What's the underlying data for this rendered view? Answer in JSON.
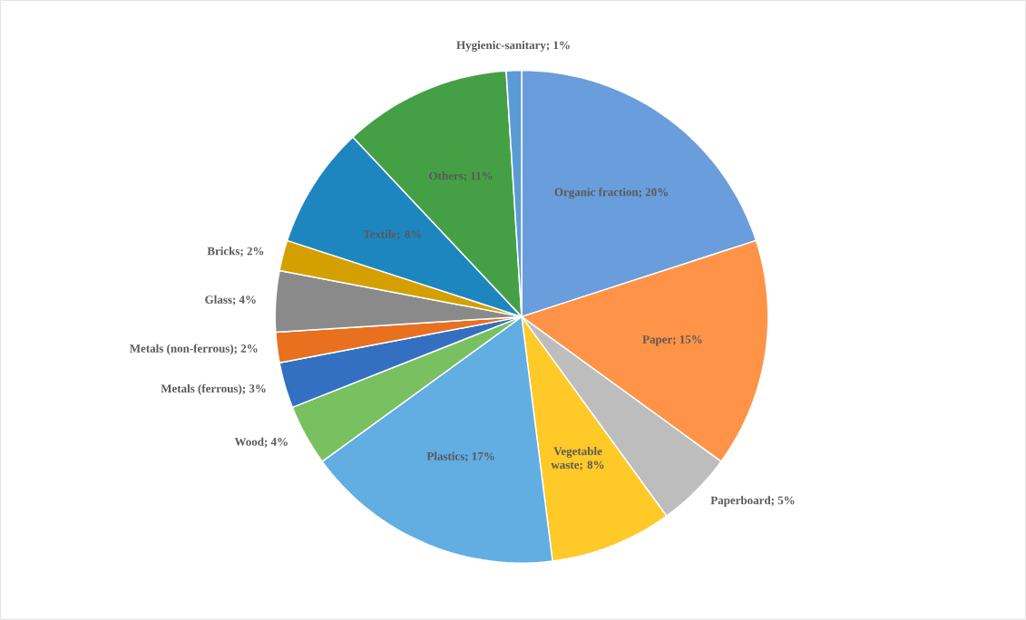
{
  "chart_data": {
    "type": "pie",
    "categories": [
      "Organic fraction; 20%",
      "Paper; 15%",
      "Paperboard; 5%",
      "Vegetable waste; 8%",
      "Plastics; 17%",
      "Wood; 4%",
      "Metals (ferrous); 3%",
      "Metals (non-ferrous); 2%",
      "Glass; 4%",
      "Bricks; 2%",
      "Textile; 8%",
      "Others; 11%",
      "Hygienic-sanitary; 1%"
    ],
    "values": [
      20,
      15,
      5,
      8,
      17,
      4,
      3,
      2,
      4,
      2,
      8,
      11,
      1
    ],
    "colors": [
      "#6a9ddc",
      "#ff9348",
      "#bdbdbd",
      "#ffc928",
      "#62ade2",
      "#78c060",
      "#3370c2",
      "#e8701f",
      "#8a8a8a",
      "#d4a000",
      "#1e86bf",
      "#45a045",
      "#5b9bd5"
    ]
  }
}
